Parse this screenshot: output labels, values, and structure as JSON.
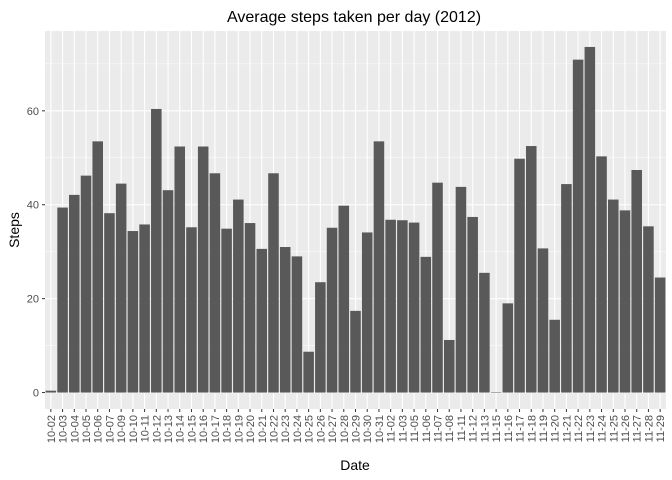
{
  "chart_data": {
    "type": "bar",
    "title": "Average steps taken per day (2012)",
    "xlabel": "Date",
    "ylabel": "Steps",
    "ylim": [
      -3.5,
      77
    ],
    "yticks": [
      0,
      20,
      40,
      60
    ],
    "grid": true,
    "legend": "none",
    "colors": {
      "panel": "#ebebeb",
      "grid": "#ffffff",
      "bar": "#595959"
    },
    "categories": [
      "10-02",
      "10-03",
      "10-04",
      "10-05",
      "10-06",
      "10-07",
      "10-09",
      "10-10",
      "10-11",
      "10-12",
      "10-13",
      "10-14",
      "10-15",
      "10-16",
      "10-17",
      "10-18",
      "10-19",
      "10-20",
      "10-21",
      "10-22",
      "10-23",
      "10-24",
      "10-25",
      "10-26",
      "10-27",
      "10-28",
      "10-29",
      "10-30",
      "10-31",
      "11-02",
      "11-03",
      "11-05",
      "11-06",
      "11-07",
      "11-08",
      "11-11",
      "11-12",
      "11-13",
      "11-15",
      "11-16",
      "11-17",
      "11-18",
      "11-19",
      "11-20",
      "11-21",
      "11-22",
      "11-23",
      "11-24",
      "11-25",
      "11-26",
      "11-27",
      "11-28",
      "11-29"
    ],
    "values": [
      0.4,
      39.4,
      42.1,
      46.2,
      53.5,
      38.2,
      44.5,
      34.4,
      35.8,
      60.4,
      43.1,
      52.4,
      35.2,
      52.4,
      46.7,
      34.9,
      41.1,
      36.1,
      30.6,
      46.7,
      31.0,
      29.0,
      8.7,
      23.5,
      35.1,
      39.8,
      17.4,
      34.1,
      53.5,
      36.8,
      36.7,
      36.2,
      28.9,
      44.7,
      11.2,
      43.8,
      37.4,
      25.5,
      0.1,
      19.0,
      49.8,
      52.5,
      30.7,
      15.5,
      44.4,
      70.9,
      73.6,
      50.3,
      41.1,
      38.8,
      47.4,
      35.4,
      24.5
    ]
  }
}
